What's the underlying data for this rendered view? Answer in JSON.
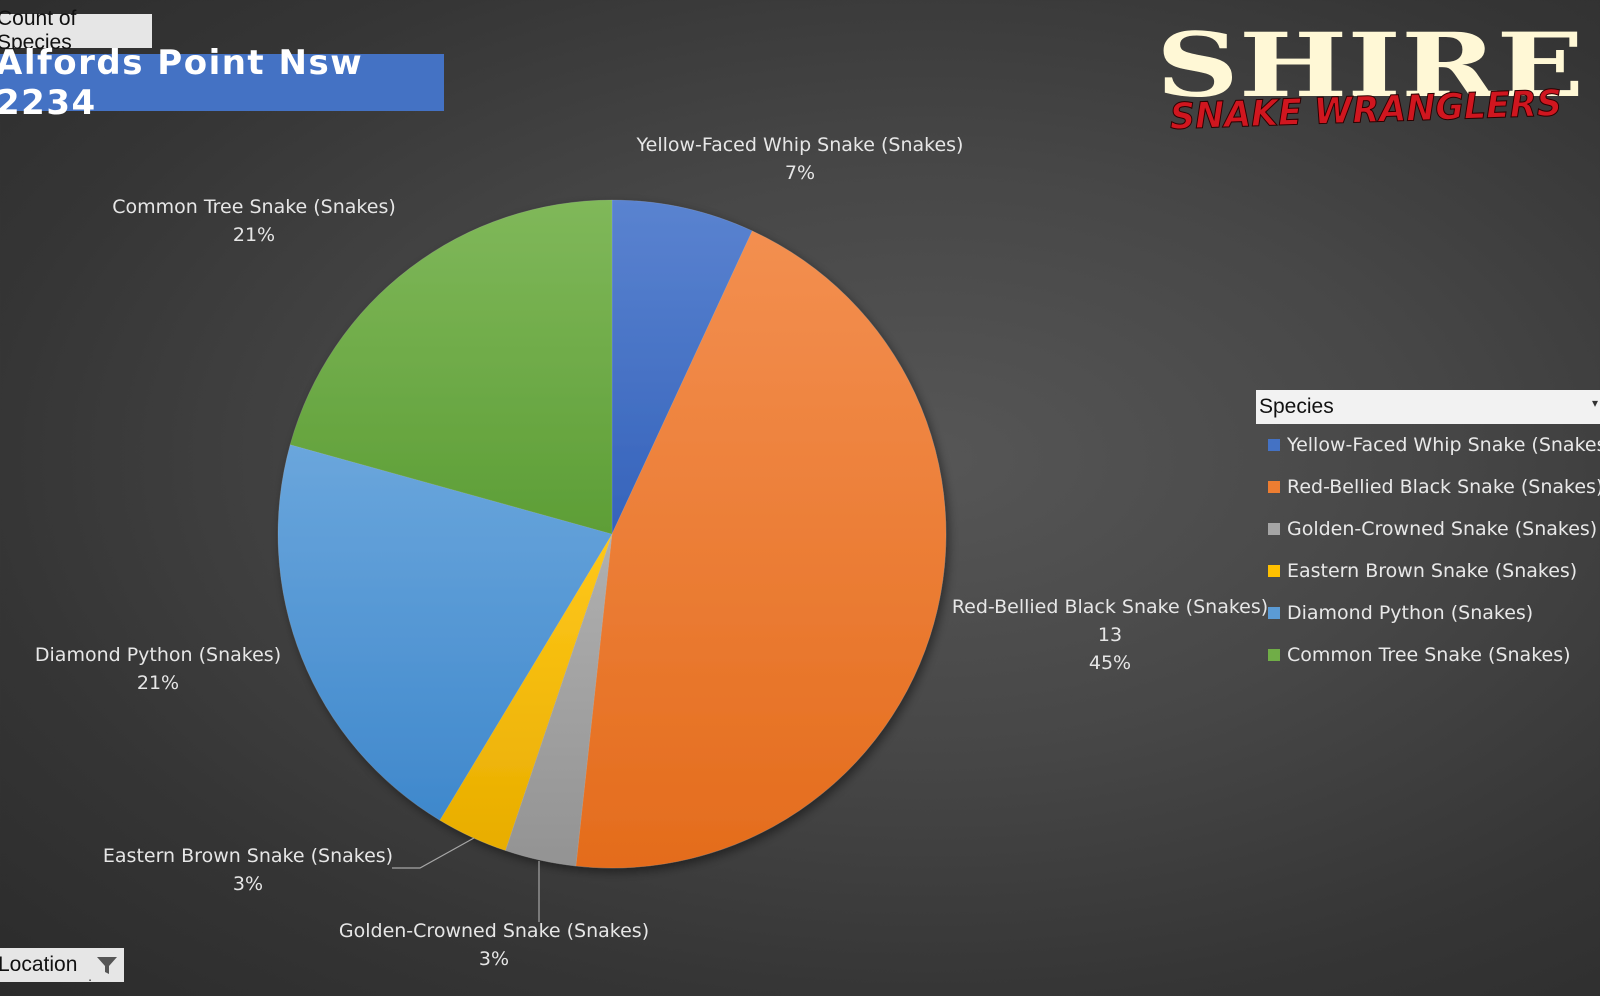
{
  "pivot": {
    "value_field": "Count of Species",
    "filter_field": "Location",
    "title": "Alfords Point Nsw 2234"
  },
  "logo": {
    "line1": "SHIRE",
    "line2": "SNAKE WRANGLERS"
  },
  "legend": {
    "header": "Species"
  },
  "chart_data": {
    "type": "pie",
    "title": "Alfords Point Nsw 2234",
    "slices": [
      {
        "name": "Yellow-Faced Whip Snake (Snakes)",
        "value": 2,
        "percent_label": "7%",
        "color": "#4472c4"
      },
      {
        "name": "Red-Bellied Black Snake (Snakes)",
        "value": 13,
        "value_label": "13",
        "percent_label": "45%",
        "color": "#ed7d31"
      },
      {
        "name": "Golden-Crowned Snake (Snakes)",
        "value": 1,
        "percent_label": "3%",
        "color": "#a5a5a5"
      },
      {
        "name": "Eastern Brown Snake (Snakes)",
        "value": 1,
        "percent_label": "3%",
        "color": "#ffc000"
      },
      {
        "name": "Diamond Python (Snakes)",
        "value": 6,
        "percent_label": "21%",
        "color": "#5b9bd5"
      },
      {
        "name": "Common Tree Snake (Snakes)",
        "value": 6,
        "percent_label": "21%",
        "color": "#70ad47"
      }
    ],
    "legend_position": "right"
  }
}
